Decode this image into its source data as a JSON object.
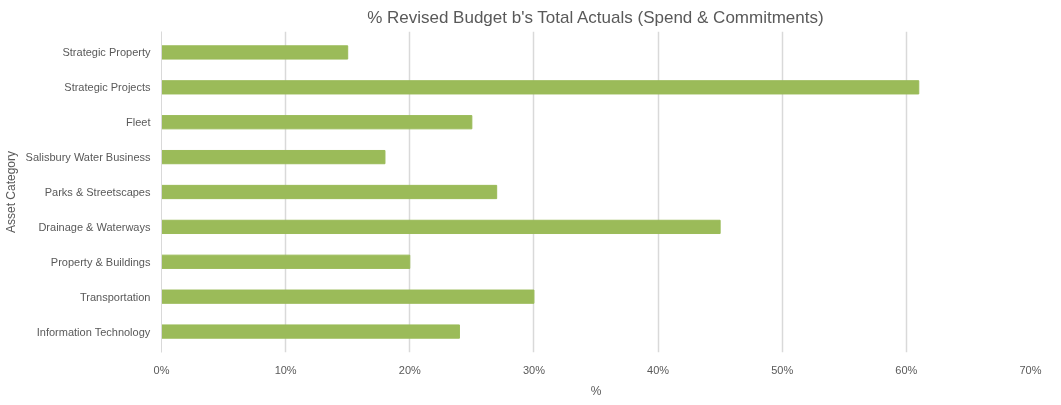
{
  "chart_data": {
    "type": "bar",
    "orientation": "horizontal",
    "title": "% Revised Budget b's Total Actuals (Spend & Commitments)",
    "xlabel": "%",
    "ylabel": "Asset Category",
    "categories": [
      "Strategic Property",
      "Strategic Projects",
      "Fleet",
      "Salisbury Water Business",
      "Parks & Streetscapes",
      "Drainage & Waterways",
      "Property & Buildings",
      "Transportation",
      "Information Technology"
    ],
    "values": [
      15,
      61,
      25,
      18,
      27,
      45,
      20,
      30,
      24
    ],
    "color": "#9bbb59",
    "xlim": [
      0,
      70
    ],
    "xticks": [
      {
        "value": 0,
        "label": "0%"
      },
      {
        "value": 10,
        "label": "10%"
      },
      {
        "value": 20,
        "label": "20%"
      },
      {
        "value": 30,
        "label": "30%"
      },
      {
        "value": 40,
        "label": "40%"
      },
      {
        "value": 50,
        "label": "50%"
      },
      {
        "value": 60,
        "label": "60%"
      },
      {
        "value": 70,
        "label": "70%"
      }
    ],
    "grid": "x"
  }
}
